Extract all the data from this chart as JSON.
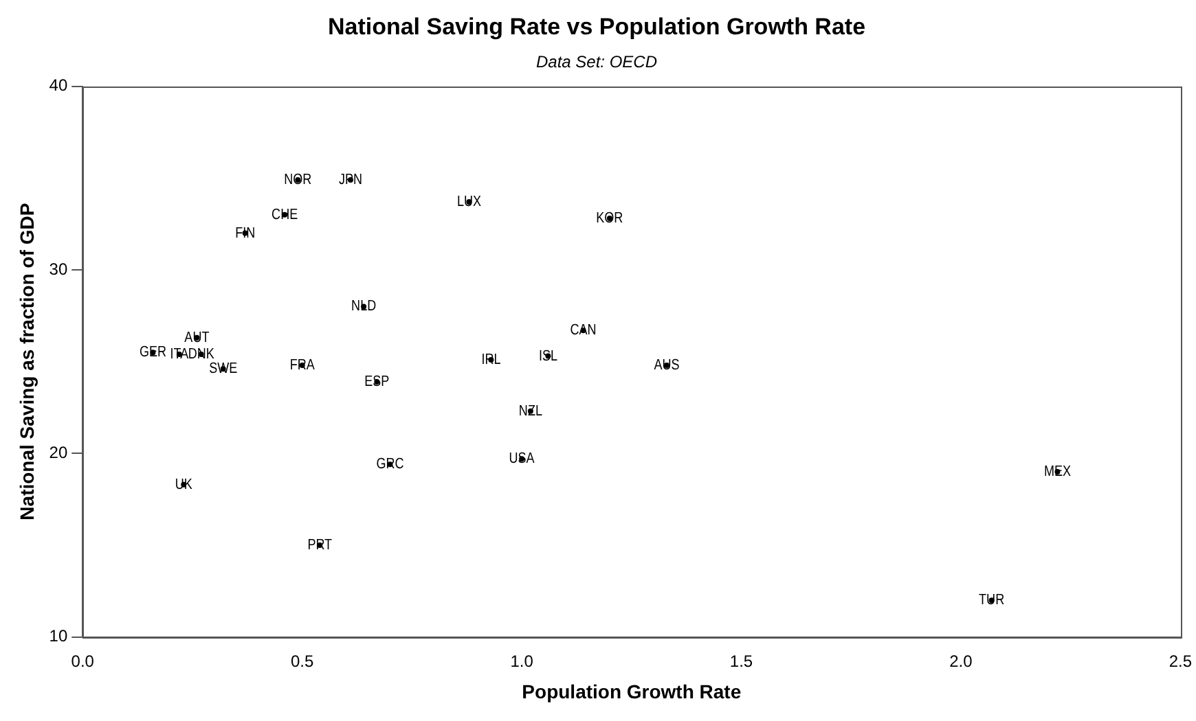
{
  "chart_data": {
    "type": "scatter",
    "title": "National Saving Rate vs Population Growth Rate",
    "subtitle": "Data Set: OECD",
    "xlabel": "Population Growth Rate",
    "ylabel": "National Saving as fraction of GDP",
    "xlim": [
      0,
      2.5
    ],
    "xticks": [
      {
        "value": 0,
        "label": "0.0"
      },
      {
        "value": 0.5,
        "label": "0.5"
      },
      {
        "value": 1,
        "label": "1.0"
      },
      {
        "value": 1.5,
        "label": "1.5"
      },
      {
        "value": 2,
        "label": "2.0"
      },
      {
        "value": 2.5,
        "label": "2.5"
      }
    ],
    "ylim": [
      10,
      40
    ],
    "yticks": [
      10,
      20,
      30,
      40
    ],
    "grid": false,
    "legend": false,
    "series": [
      {
        "name": "NOR",
        "color": "#000000",
        "x": [
          0.49
        ],
        "values": [
          34.9
        ]
      },
      {
        "name": "JPN",
        "color": "#000000",
        "x": [
          0.61
        ],
        "values": [
          34.9
        ]
      },
      {
        "name": "CHE",
        "color": "#000000",
        "x": [
          0.46
        ],
        "values": [
          33
        ]
      },
      {
        "name": "FIN",
        "color": "#000000",
        "x": [
          0.37
        ],
        "values": [
          32
        ]
      },
      {
        "name": "LUX",
        "color": "#000000",
        "x": [
          0.88
        ],
        "values": [
          33.7
        ]
      },
      {
        "name": "KOR",
        "color": "#000000",
        "x": [
          1.2
        ],
        "values": [
          32.8
        ]
      },
      {
        "name": "NLD",
        "color": "#000000",
        "x": [
          0.64
        ],
        "values": [
          28
        ]
      },
      {
        "name": "CAN",
        "color": "#000000",
        "x": [
          1.14
        ],
        "values": [
          26.7
        ]
      },
      {
        "name": "AUT",
        "color": "#000000",
        "x": [
          0.26
        ],
        "values": [
          26.3
        ]
      },
      {
        "name": "GER",
        "color": "#000000",
        "x": [
          0.16
        ],
        "values": [
          25.5
        ]
      },
      {
        "name": "ITA",
        "color": "#000000",
        "x": [
          0.22
        ],
        "values": [
          25.4
        ]
      },
      {
        "name": "DNK",
        "color": "#000000",
        "x": [
          0.27
        ],
        "values": [
          25.4
        ]
      },
      {
        "name": "SWE",
        "color": "#000000",
        "x": [
          0.32
        ],
        "values": [
          24.6
        ]
      },
      {
        "name": "FRA",
        "color": "#000000",
        "x": [
          0.5
        ],
        "values": [
          24.8
        ]
      },
      {
        "name": "ESP",
        "color": "#000000",
        "x": [
          0.67
        ],
        "values": [
          23.9
        ]
      },
      {
        "name": "IRL",
        "color": "#000000",
        "x": [
          0.93
        ],
        "values": [
          25.1
        ]
      },
      {
        "name": "ISL",
        "color": "#000000",
        "x": [
          1.06
        ],
        "values": [
          25.3
        ]
      },
      {
        "name": "AUS",
        "color": "#000000",
        "x": [
          1.33
        ],
        "values": [
          24.8
        ]
      },
      {
        "name": "NZL",
        "color": "#000000",
        "x": [
          1.02
        ],
        "values": [
          22.3
        ]
      },
      {
        "name": "USA",
        "color": "#000000",
        "x": [
          1
        ],
        "values": [
          19.7
        ]
      },
      {
        "name": "GRC",
        "color": "#000000",
        "x": [
          0.7
        ],
        "values": [
          19.4
        ]
      },
      {
        "name": "UK",
        "color": "#000000",
        "x": [
          0.23
        ],
        "values": [
          18.3
        ]
      },
      {
        "name": "PRT",
        "color": "#000000",
        "x": [
          0.54
        ],
        "values": [
          15
        ]
      },
      {
        "name": "MEX",
        "color": "#000000",
        "x": [
          2.22
        ],
        "values": [
          19
        ]
      },
      {
        "name": "TUR",
        "color": "#000000",
        "x": [
          2.07
        ],
        "values": [
          12
        ]
      }
    ]
  }
}
